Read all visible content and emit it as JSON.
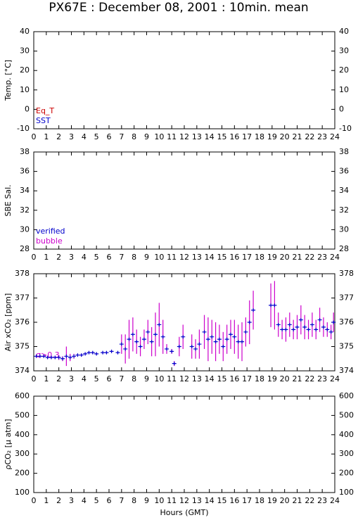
{
  "title": "PX67E : December 08, 2001 : 10min. mean",
  "chart_data": [
    {
      "type": "line",
      "ylabel": "Temp. [°C]",
      "xlim": [
        0,
        24
      ],
      "xticks": [
        0,
        1,
        2,
        3,
        4,
        5,
        6,
        7,
        8,
        9,
        10,
        11,
        12,
        13,
        14,
        15,
        16,
        17,
        18,
        19,
        20,
        21,
        22,
        23,
        24
      ],
      "ylim": [
        -10,
        40
      ],
      "yticks": [
        -10,
        0,
        10,
        20,
        30,
        40
      ],
      "x": [],
      "series": [
        {
          "name": "Eq_T",
          "color": "#cc0000",
          "values": []
        },
        {
          "name": "SST",
          "color": "#0000cc",
          "values": []
        }
      ]
    },
    {
      "type": "line",
      "ylabel": "SBE Sal.",
      "xlim": [
        0,
        24
      ],
      "xticks": [
        0,
        1,
        2,
        3,
        4,
        5,
        6,
        7,
        8,
        9,
        10,
        11,
        12,
        13,
        14,
        15,
        16,
        17,
        18,
        19,
        20,
        21,
        22,
        23,
        24
      ],
      "ylim": [
        28,
        38
      ],
      "yticks": [
        28,
        30,
        32,
        34,
        36,
        38
      ],
      "x": [],
      "series": [
        {
          "name": "verified",
          "color": "#0000cc",
          "values": []
        },
        {
          "name": "bubble",
          "color": "#cc00cc",
          "values": []
        }
      ]
    },
    {
      "type": "scatter",
      "ylabel": "Air xCO₂ [ppm]",
      "xlim": [
        0,
        24
      ],
      "xticks": [
        0,
        1,
        2,
        3,
        4,
        5,
        6,
        7,
        8,
        9,
        10,
        11,
        12,
        13,
        14,
        15,
        16,
        17,
        18,
        19,
        20,
        21,
        22,
        23,
        24
      ],
      "ylim": [
        374,
        378
      ],
      "yticks": [
        374,
        375,
        376,
        377,
        378
      ],
      "annotation": {
        "text": "σ>0.3",
        "color": "#cc00cc"
      },
      "color": "#0000cc",
      "error_color": "#cc00cc",
      "x": [
        0.2,
        0.5,
        0.8,
        1.1,
        1.4,
        1.7,
        2.0,
        2.3,
        2.6,
        2.9,
        3.2,
        3.5,
        3.8,
        4.1,
        4.4,
        4.7,
        5.0,
        5.5,
        5.8,
        6.2,
        6.7,
        7.0,
        7.3,
        7.6,
        7.9,
        8.2,
        8.5,
        8.8,
        9.1,
        9.4,
        9.7,
        10.0,
        10.3,
        10.6,
        11.0,
        11.2,
        11.6,
        11.9,
        12.6,
        12.9,
        13.2,
        13.6,
        13.9,
        14.2,
        14.5,
        14.8,
        15.1,
        15.4,
        15.7,
        16.0,
        16.3,
        16.6,
        16.9,
        17.2,
        17.5,
        18.9,
        19.2,
        19.5,
        19.8,
        20.1,
        20.4,
        20.7,
        21.0,
        21.3,
        21.6,
        21.9,
        22.2,
        22.5,
        22.8,
        23.1,
        23.4,
        23.7,
        23.9
      ],
      "values": [
        374.6,
        374.6,
        374.6,
        374.55,
        374.55,
        374.55,
        374.55,
        374.5,
        374.6,
        374.55,
        374.6,
        374.65,
        374.65,
        374.7,
        374.75,
        374.75,
        374.7,
        374.75,
        374.75,
        374.8,
        374.75,
        375.1,
        374.9,
        375.3,
        375.5,
        375.2,
        375.0,
        375.3,
        375.6,
        375.2,
        375.5,
        375.9,
        375.4,
        374.9,
        374.8,
        374.3,
        375.0,
        375.4,
        375.0,
        374.9,
        375.1,
        375.6,
        375.3,
        375.4,
        375.2,
        375.3,
        375.0,
        375.3,
        375.5,
        375.4,
        375.2,
        375.2,
        375.6,
        376.0,
        376.5,
        376.7,
        376.7,
        375.9,
        375.7,
        375.7,
        375.9,
        375.7,
        375.8,
        376.1,
        375.8,
        375.7,
        375.9,
        375.7,
        376.1,
        375.8,
        375.7,
        375.6,
        376.0
      ],
      "errors": [
        0.05,
        0.05,
        0.05,
        0.05,
        0.05,
        0.05,
        0.1,
        0.1,
        0.4,
        0.15,
        0.1,
        0.05,
        0.05,
        0.05,
        0.05,
        0.05,
        0.05,
        0.05,
        0.05,
        0.05,
        0.05,
        0.4,
        0.6,
        0.8,
        0.7,
        0.5,
        0.4,
        0.4,
        0.5,
        0.6,
        0.9,
        0.9,
        0.7,
        0.2,
        0.1,
        0.1,
        0.4,
        0.5,
        0.5,
        0.4,
        0.6,
        0.7,
        0.9,
        0.7,
        0.8,
        0.6,
        0.6,
        0.6,
        0.6,
        0.7,
        0.7,
        0.8,
        0.6,
        0.9,
        0.8,
        0.9,
        1.0,
        0.5,
        0.4,
        0.5,
        0.5,
        0.4,
        0.5,
        0.6,
        0.5,
        0.4,
        0.5,
        0.4,
        0.5,
        0.4,
        0.3,
        0.3,
        0.4
      ]
    },
    {
      "type": "scatter",
      "ylabel": "ρCO₂ [μ atm]",
      "xlabel": "Hours (GMT)",
      "xlim": [
        0,
        24
      ],
      "xticks": [
        0,
        1,
        2,
        3,
        4,
        5,
        6,
        7,
        8,
        9,
        10,
        11,
        12,
        13,
        14,
        15,
        16,
        17,
        18,
        19,
        20,
        21,
        22,
        23,
        24
      ],
      "ylim": [
        100,
        600
      ],
      "yticks": [
        100,
        200,
        300,
        400,
        500,
        600
      ],
      "x": [],
      "values": [],
      "errors": []
    }
  ]
}
